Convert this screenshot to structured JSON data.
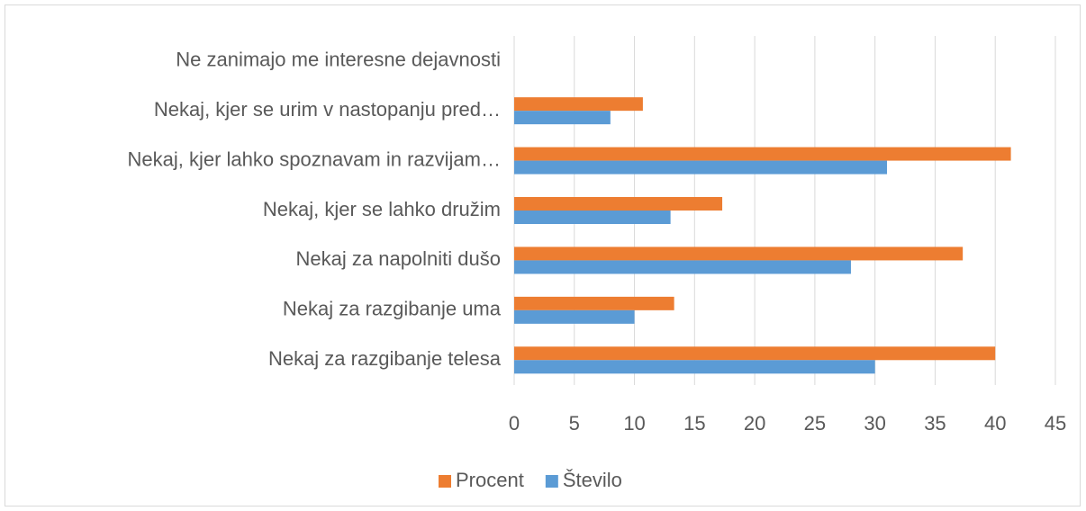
{
  "chart_data": {
    "type": "barh",
    "categories": [
      "Ne zanimajo me interesne dejavnosti",
      "Nekaj, kjer se urim v nastopanju pred…",
      "Nekaj, kjer lahko spoznavam in razvijam…",
      "Nekaj, kjer se lahko družim",
      "Nekaj za napolniti dušo",
      "Nekaj za razgibanje uma",
      "Nekaj za razgibanje telesa"
    ],
    "series": [
      {
        "name": "Procent",
        "color": "#ed7d31",
        "values": [
          0,
          10.7,
          41.3,
          17.3,
          37.3,
          13.3,
          40
        ]
      },
      {
        "name": "Število",
        "color": "#5b9bd5",
        "values": [
          0,
          8,
          31,
          13,
          28,
          10,
          30
        ]
      }
    ],
    "xlim": [
      0,
      45
    ],
    "xticks": [
      0,
      5,
      10,
      15,
      20,
      25,
      30,
      35,
      40,
      45
    ],
    "grid": true,
    "legend": "bottom"
  }
}
